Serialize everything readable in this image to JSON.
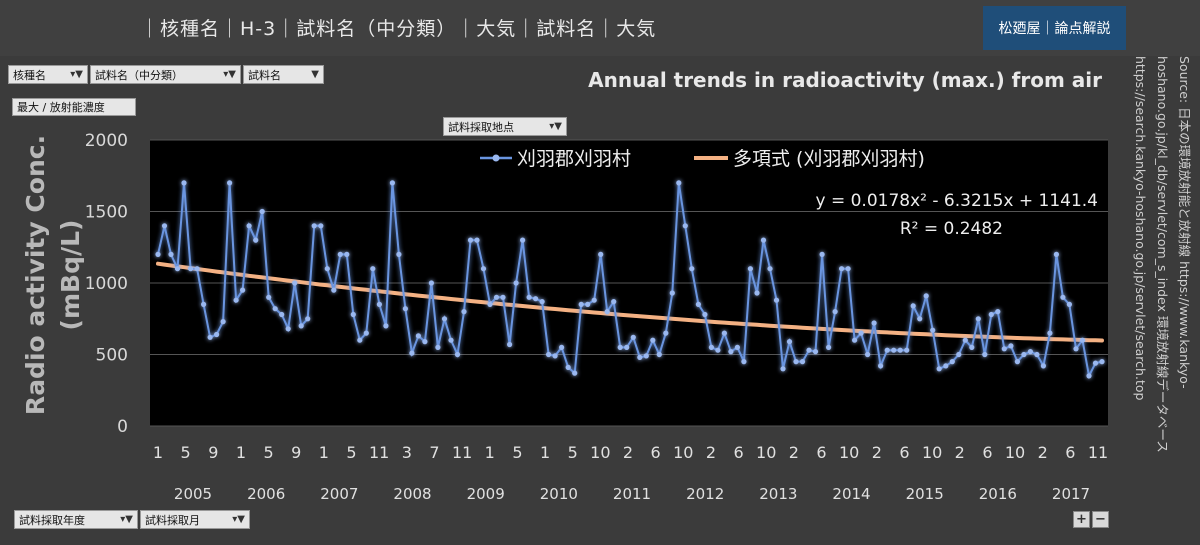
{
  "header": {
    "crumbs": "｜核種名｜H-3｜試料名（中分類）｜大気｜試料名｜大気",
    "brand": "松廼屋｜論点解説"
  },
  "filters": {
    "nuclide": "核種名",
    "sample_mid": "試料名（中分類）",
    "sample": "試料名",
    "measure": "最大 / 放射能濃度",
    "location": "試料採取地点",
    "year": "試料採取年度",
    "month": "試料採取月"
  },
  "source": {
    "line1": "Source: 日本の環境放射能と放射線 https://www.kankyo-",
    "line2": "hoshano.go.jp/kl_db/servlet/com_s_index 環境放射線データベース",
    "line3": "https://search.kankyo-hoshano.go.jp/servlet/search.top"
  },
  "zoom": {
    "plus": "+",
    "minus": "−"
  },
  "chart_data": {
    "type": "line",
    "title": "Annual trends in radioactivity (max.) from air",
    "ylabel": "Radio activity Conc. (mBq/L)",
    "xlabel": "",
    "ylim": [
      0,
      2000
    ],
    "yticks": [
      0,
      500,
      1000,
      1500,
      2000
    ],
    "grid": true,
    "legend_position": "top-center",
    "x_month_labels": [
      "1",
      "5",
      "9",
      "1",
      "5",
      "9",
      "1",
      "5",
      "11",
      "3",
      "7",
      "11",
      "1",
      "5",
      "1",
      "5",
      "10",
      "2",
      "6",
      "10",
      "2",
      "6",
      "10",
      "2",
      "6",
      "10",
      "2",
      "6",
      "10",
      "2",
      "6",
      "10",
      "2",
      "6",
      "11"
    ],
    "x_year_labels": [
      "2005",
      "2006",
      "2007",
      "2008",
      "2009",
      "2010",
      "2011",
      "2012",
      "2013",
      "2014",
      "2015",
      "2016",
      "2017"
    ],
    "series": [
      {
        "name": "刈羽郡刈羽村",
        "color": "#4472c4",
        "values": [
          1200,
          1400,
          1200,
          1100,
          1700,
          1100,
          1100,
          850,
          620,
          640,
          730,
          1700,
          880,
          950,
          1400,
          1300,
          1500,
          900,
          820,
          780,
          680,
          1000,
          700,
          750,
          1400,
          1400,
          1100,
          950,
          1200,
          1200,
          780,
          600,
          650,
          1100,
          850,
          700,
          1700,
          1200,
          820,
          510,
          630,
          590,
          1000,
          550,
          750,
          600,
          500,
          800,
          1300,
          1300,
          1100,
          850,
          900,
          900,
          570,
          1000,
          1300,
          900,
          890,
          870,
          500,
          490,
          550,
          410,
          370,
          850,
          850,
          880,
          1200,
          800,
          870,
          550,
          550,
          620,
          480,
          490,
          600,
          500,
          650,
          930,
          1700,
          1400,
          1100,
          850,
          780,
          550,
          530,
          650,
          520,
          550,
          450,
          1100,
          930,
          1300,
          1100,
          880,
          400,
          590,
          450,
          450,
          530,
          520,
          1200,
          550,
          800,
          1100,
          1100,
          600,
          650,
          500,
          720,
          420,
          530,
          530,
          530,
          530,
          840,
          750,
          910,
          670,
          400,
          420,
          450,
          500,
          600,
          550,
          750,
          500,
          780,
          800,
          540,
          560,
          450,
          500,
          520,
          500,
          420,
          650,
          1200,
          900,
          850,
          540,
          600,
          350,
          440,
          450
        ]
      },
      {
        "name": "多項式 (刈羽郡刈羽村)",
        "color": "#f4b183",
        "equation": "y = 0.0178x² - 6.3215x + 1141.4",
        "r2": "R² = 0.2482",
        "coefficients": [
          0.0178,
          -6.3215,
          1141.4
        ]
      }
    ]
  }
}
